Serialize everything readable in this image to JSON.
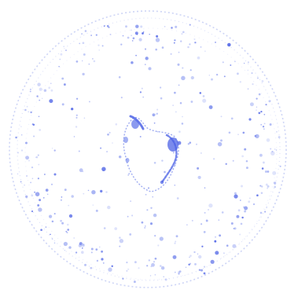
{
  "image": {
    "description_kind": "speckle-pattern",
    "colors": {
      "background": "#ffffff",
      "ring": "#b8c2f2",
      "speckle_light": "#aab6f4",
      "speckle_mid": "#7f90ee",
      "speckle_dark": "#4d63e6",
      "center_blob": "#3f57e4"
    }
  }
}
